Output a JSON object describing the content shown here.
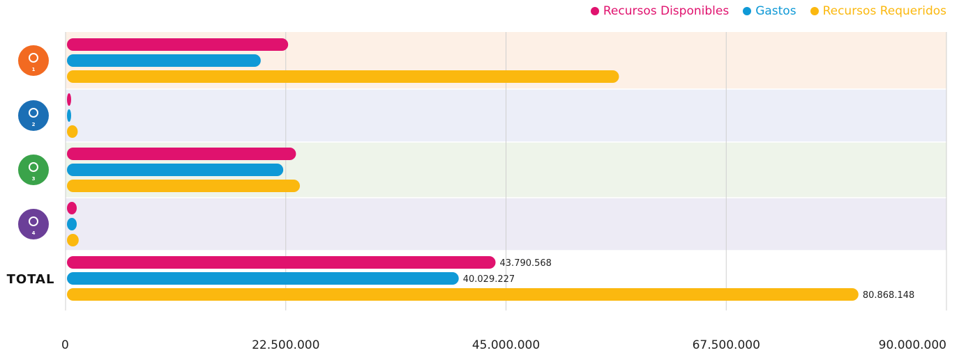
{
  "chart_data": {
    "type": "bar",
    "orientation": "horizontal",
    "categories": [
      "1",
      "2",
      "3",
      "4",
      "TOTAL"
    ],
    "category_icons": [
      "hand-people-icon",
      "balance-scale-icon",
      "plant-hand-icon",
      "gender-symbol-icon",
      ""
    ],
    "category_colors": [
      "#f26a21",
      "#1b6fb5",
      "#3aa34a",
      "#6b3f98",
      ""
    ],
    "band_colors": [
      "#fdf0e6",
      "#eceef8",
      "#eef4ea",
      "#edebf5",
      "#ffffff"
    ],
    "series": [
      {
        "name": "Recursos Disponibles",
        "color": "#e0126e",
        "values": [
          22600000,
          400000,
          23400000,
          1000000,
          43790568
        ]
      },
      {
        "name": "Gastos",
        "color": "#0f99d6",
        "values": [
          19800000,
          400000,
          22100000,
          1000000,
          40029227
        ]
      },
      {
        "name": "Recursos Requeridos",
        "color": "#fbb80f",
        "values": [
          56400000,
          1100000,
          23800000,
          1200000,
          80868148
        ]
      }
    ],
    "value_labels": [
      null,
      null,
      null,
      null,
      [
        "43.790.568",
        "40.029.227",
        "80.868.148"
      ]
    ],
    "xlim": [
      0,
      90000000
    ],
    "xticks": [
      0,
      22500000,
      45000000,
      67500000,
      90000000
    ],
    "xtick_labels": [
      "0",
      "22.500.000",
      "45.000.000",
      "67.500.000",
      "90.000.000"
    ],
    "grid": true,
    "legend_position": "top-right"
  }
}
